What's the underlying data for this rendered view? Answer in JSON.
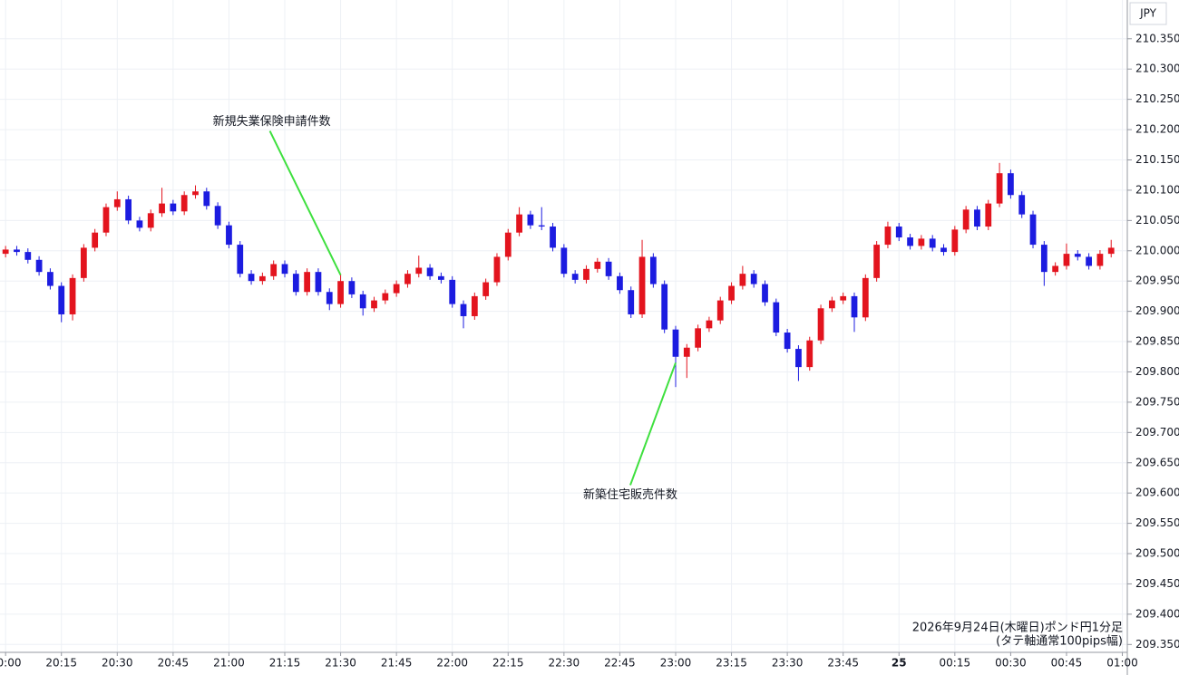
{
  "chart_data": {
    "type": "candlestick",
    "currency": "JPY",
    "footer": [
      "2026年9月24日(木曜日)ポンド円1分足",
      "(タテ軸通常100pips幅)"
    ],
    "up_color": "#e3141e",
    "down_color": "#1c1ce0",
    "grid": true,
    "xlim": [
      -1.5,
      300.6
    ],
    "ylim": [
      209.337,
      210.414
    ],
    "xticks": [
      {
        "value": 0,
        "label": "20:00"
      },
      {
        "value": 15,
        "label": "20:15"
      },
      {
        "value": 30,
        "label": "20:30"
      },
      {
        "value": 45,
        "label": "20:45"
      },
      {
        "value": 60,
        "label": "21:00"
      },
      {
        "value": 75,
        "label": "21:15"
      },
      {
        "value": 90,
        "label": "21:30"
      },
      {
        "value": 105,
        "label": "21:45"
      },
      {
        "value": 120,
        "label": "22:00"
      },
      {
        "value": 135,
        "label": "22:15"
      },
      {
        "value": 150,
        "label": "22:30"
      },
      {
        "value": 165,
        "label": "22:45"
      },
      {
        "value": 180,
        "label": "23:00"
      },
      {
        "value": 195,
        "label": "23:15"
      },
      {
        "value": 210,
        "label": "23:30"
      },
      {
        "value": 225,
        "label": "23:45"
      },
      {
        "value": 240,
        "label": "25"
      },
      {
        "value": 255,
        "label": "00:15"
      },
      {
        "value": 270,
        "label": "00:30"
      },
      {
        "value": 285,
        "label": "00:45"
      },
      {
        "value": 300,
        "label": "01:00"
      }
    ],
    "yticks": [
      {
        "value": 209.35,
        "label": "209.350"
      },
      {
        "value": 209.4,
        "label": "209.400"
      },
      {
        "value": 209.45,
        "label": "209.450"
      },
      {
        "value": 209.5,
        "label": "209.500"
      },
      {
        "value": 209.55,
        "label": "209.550"
      },
      {
        "value": 209.6,
        "label": "209.600"
      },
      {
        "value": 209.65,
        "label": "209.650"
      },
      {
        "value": 209.7,
        "label": "209.700"
      },
      {
        "value": 209.75,
        "label": "209.750"
      },
      {
        "value": 209.8,
        "label": "209.800"
      },
      {
        "value": 209.85,
        "label": "209.850"
      },
      {
        "value": 209.9,
        "label": "209.900"
      },
      {
        "value": 209.95,
        "label": "209.950"
      },
      {
        "value": 210.0,
        "label": "210.000"
      },
      {
        "value": 210.05,
        "label": "210.050"
      },
      {
        "value": 210.1,
        "label": "210.100"
      },
      {
        "value": 210.15,
        "label": "210.150"
      },
      {
        "value": 210.2,
        "label": "210.200"
      },
      {
        "value": 210.25,
        "label": "210.250"
      },
      {
        "value": 210.3,
        "label": "210.300"
      },
      {
        "value": 210.35,
        "label": "210.350"
      }
    ],
    "annotations": [
      {
        "text": "新規失業保険申請件数",
        "x": 90,
        "y": 209.96
      },
      {
        "text": "新築住宅販売件数",
        "x": 180,
        "y": 209.815
      }
    ],
    "x": [
      0,
      3,
      6,
      9,
      12,
      15,
      18,
      21,
      24,
      27,
      30,
      33,
      36,
      39,
      42,
      45,
      48,
      51,
      54,
      57,
      60,
      63,
      66,
      69,
      72,
      75,
      78,
      81,
      84,
      87,
      90,
      93,
      96,
      99,
      102,
      105,
      108,
      111,
      114,
      117,
      120,
      123,
      126,
      129,
      132,
      135,
      138,
      141,
      144,
      147,
      150,
      153,
      156,
      159,
      162,
      165,
      168,
      171,
      174,
      177,
      180,
      183,
      186,
      189,
      192,
      195,
      198,
      201,
      204,
      207,
      210,
      213,
      216,
      219,
      222,
      225,
      228,
      231,
      234,
      237,
      240,
      243,
      246,
      249,
      252,
      255,
      258,
      261,
      264,
      267,
      270,
      273,
      276,
      279,
      282,
      285,
      288,
      291,
      294,
      297
    ],
    "open": [
      209.995,
      210.002,
      209.998,
      209.985,
      209.965,
      209.942,
      209.895,
      209.955,
      210.005,
      210.03,
      210.072,
      210.085,
      210.05,
      210.038,
      210.062,
      210.078,
      210.065,
      210.092,
      210.098,
      210.074,
      210.042,
      210.01,
      209.962,
      209.95,
      209.958,
      209.978,
      209.962,
      209.932,
      209.965,
      209.932,
      209.912,
      209.95,
      209.928,
      209.905,
      209.918,
      209.93,
      209.945,
      209.962,
      209.972,
      209.958,
      209.952,
      209.912,
      209.892,
      209.925,
      209.948,
      209.99,
      210.03,
      210.06,
      210.042,
      210.04,
      210.005,
      209.962,
      209.952,
      209.97,
      209.982,
      209.958,
      209.935,
      209.895,
      209.99,
      209.945,
      209.87,
      209.825,
      209.84,
      209.872,
      209.885,
      209.918,
      209.942,
      209.962,
      209.945,
      209.915,
      209.865,
      209.838,
      209.808,
      209.852,
      209.905,
      209.918,
      209.925,
      209.89,
      209.955,
      210.01,
      210.04,
      210.022,
      210.008,
      210.02,
      210.005,
      209.998,
      210.035,
      210.068,
      210.04,
      210.078,
      210.128,
      210.092,
      210.06,
      210.01,
      209.965,
      209.975,
      209.995,
      209.99,
      209.975,
      209.995
    ],
    "high": [
      210.008,
      210.008,
      210.004,
      209.991,
      209.971,
      209.948,
      209.961,
      210.011,
      210.036,
      210.078,
      210.098,
      210.091,
      210.056,
      210.068,
      210.104,
      210.084,
      210.098,
      210.108,
      210.104,
      210.08,
      210.048,
      210.016,
      209.968,
      209.964,
      209.984,
      209.984,
      209.968,
      209.971,
      209.971,
      209.938,
      209.962,
      209.956,
      209.934,
      209.924,
      209.936,
      209.951,
      209.968,
      209.992,
      209.978,
      209.964,
      209.958,
      209.918,
      209.931,
      209.954,
      209.996,
      210.036,
      210.072,
      210.066,
      210.072,
      210.046,
      210.011,
      209.968,
      209.976,
      209.988,
      209.988,
      209.964,
      209.941,
      210.018,
      209.996,
      209.951,
      209.876,
      209.846,
      209.878,
      209.891,
      209.924,
      209.948,
      209.975,
      209.968,
      209.951,
      209.921,
      209.871,
      209.844,
      209.858,
      209.911,
      209.924,
      209.931,
      209.931,
      209.961,
      210.016,
      210.048,
      210.046,
      210.028,
      210.026,
      210.026,
      210.011,
      210.041,
      210.074,
      210.074,
      210.084,
      210.145,
      210.134,
      210.098,
      210.066,
      210.016,
      209.981,
      210.012,
      210.001,
      209.996,
      210.001,
      210.018
    ],
    "low": [
      209.989,
      209.992,
      209.979,
      209.959,
      209.936,
      209.882,
      209.885,
      209.949,
      209.999,
      210.024,
      210.066,
      210.044,
      210.032,
      210.032,
      210.056,
      210.059,
      210.059,
      210.086,
      210.068,
      210.036,
      210.004,
      209.956,
      209.944,
      209.944,
      209.952,
      209.956,
      209.926,
      209.926,
      209.926,
      209.902,
      209.906,
      209.922,
      209.893,
      209.899,
      209.912,
      209.924,
      209.939,
      209.956,
      209.952,
      209.946,
      209.906,
      209.872,
      209.886,
      209.919,
      209.942,
      209.984,
      210.024,
      210.036,
      210.034,
      209.999,
      209.956,
      209.946,
      209.946,
      209.964,
      209.952,
      209.929,
      209.889,
      209.889,
      209.939,
      209.864,
      209.775,
      209.79,
      209.834,
      209.866,
      209.879,
      209.912,
      209.936,
      209.939,
      209.909,
      209.859,
      209.832,
      209.785,
      209.802,
      209.846,
      209.899,
      209.912,
      209.866,
      209.884,
      209.949,
      210.004,
      210.016,
      210.002,
      210.002,
      209.999,
      209.992,
      209.992,
      210.029,
      210.034,
      210.034,
      210.072,
      210.086,
      210.054,
      210.004,
      209.942,
      209.959,
      209.969,
      209.984,
      209.969,
      209.969,
      209.989
    ],
    "close": [
      210.002,
      209.998,
      209.985,
      209.965,
      209.942,
      209.895,
      209.955,
      210.005,
      210.03,
      210.072,
      210.085,
      210.05,
      210.038,
      210.062,
      210.078,
      210.065,
      210.092,
      210.098,
      210.074,
      210.042,
      210.01,
      209.962,
      209.95,
      209.958,
      209.978,
      209.962,
      209.932,
      209.965,
      209.932,
      209.912,
      209.95,
      209.928,
      209.905,
      209.918,
      209.93,
      209.945,
      209.962,
      209.972,
      209.958,
      209.952,
      209.912,
      209.892,
      209.925,
      209.948,
      209.99,
      210.03,
      210.06,
      210.042,
      210.04,
      210.005,
      209.962,
      209.952,
      209.97,
      209.982,
      209.958,
      209.935,
      209.895,
      209.99,
      209.945,
      209.87,
      209.825,
      209.84,
      209.872,
      209.885,
      209.918,
      209.942,
      209.962,
      209.945,
      209.915,
      209.865,
      209.838,
      209.808,
      209.852,
      209.905,
      209.918,
      209.925,
      209.89,
      209.955,
      210.01,
      210.04,
      210.022,
      210.008,
      210.02,
      210.005,
      209.998,
      210.035,
      210.068,
      210.04,
      210.078,
      210.128,
      210.092,
      210.06,
      210.01,
      209.965,
      209.975,
      209.995,
      209.99,
      209.975,
      209.995,
      210.005
    ]
  }
}
